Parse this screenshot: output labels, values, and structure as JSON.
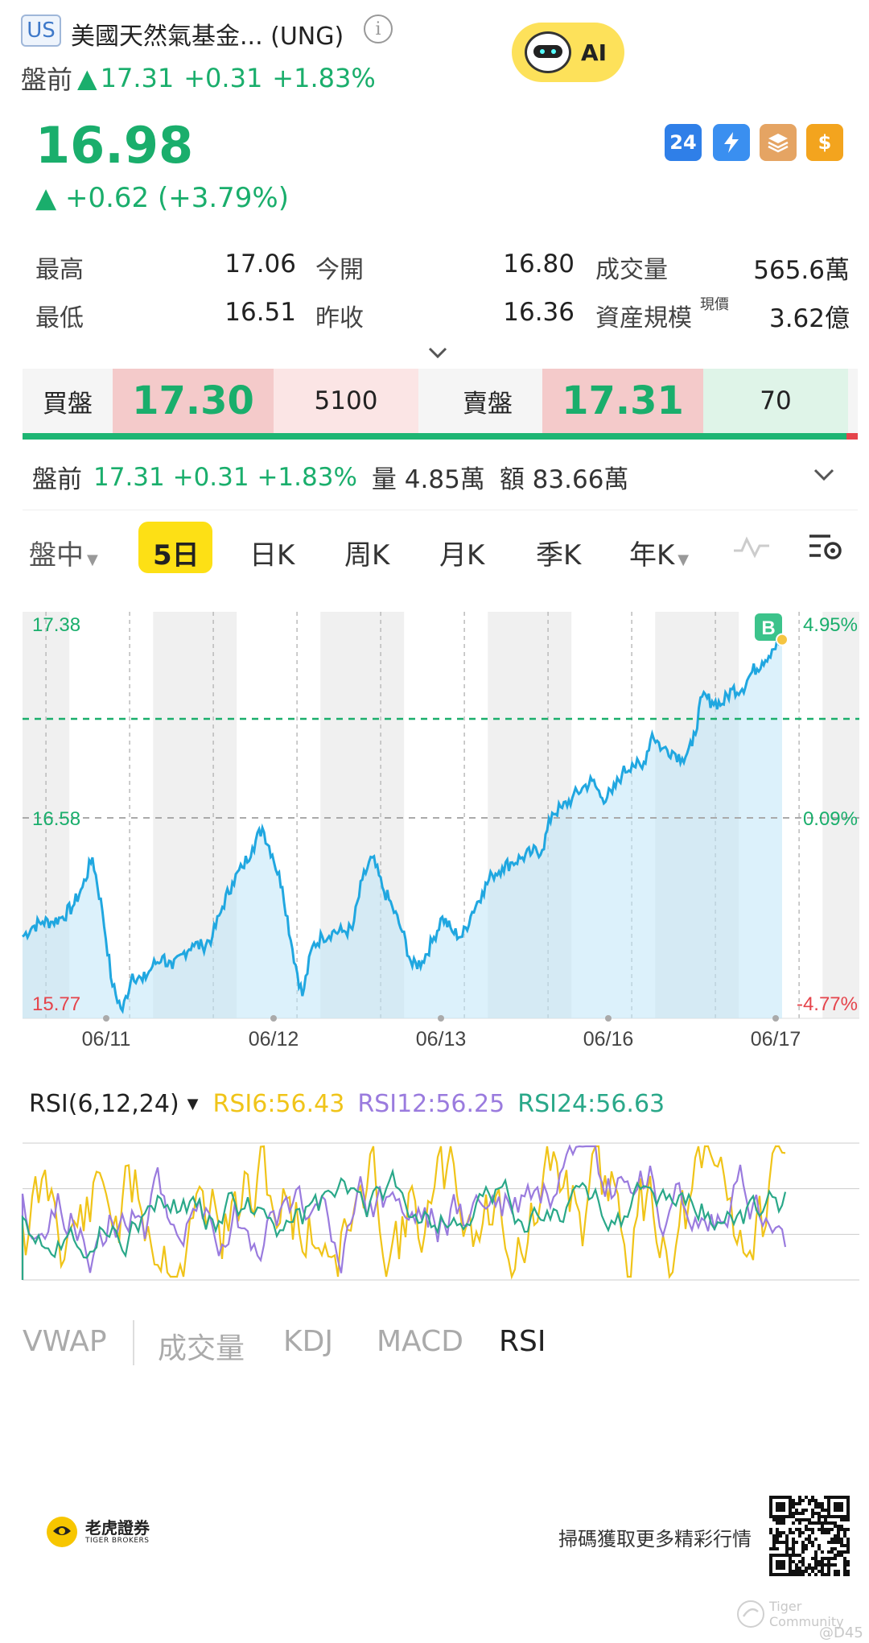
{
  "header": {
    "market_badge": "US",
    "stock_name": "美國天然氣基金... (UNG)",
    "ai_label": "AI",
    "premarket_label": "盤前",
    "premarket_arrow": "▲",
    "premarket_price": "17.31",
    "premarket_change": "+0.31",
    "premarket_pct": "+1.83%"
  },
  "quote": {
    "price": "16.98",
    "change_line": "▲ +0.62 (+3.79%)",
    "icons": [
      "24-hour-icon",
      "flash-trade-icon",
      "layers-icon",
      "dollar-icon"
    ],
    "icon_24_text": "24",
    "icon_dollar_text": "$"
  },
  "stats": {
    "high_label": "最高",
    "high_value": "17.06",
    "open_label": "今開",
    "open_value": "16.80",
    "volume_label": "成交量",
    "volume_value": "565.6萬",
    "low_label": "最低",
    "low_value": "16.51",
    "prev_close_label": "昨收",
    "prev_close_value": "16.36",
    "aum_label": "資産規模",
    "aum_suffix": "現價",
    "aum_value": "3.62億"
  },
  "orderbook": {
    "bid_label": "買盤",
    "bid_price": "17.30",
    "bid_size": "5100",
    "ask_label": "賣盤",
    "ask_price": "17.31",
    "ask_size": "70"
  },
  "premarket_row": {
    "label": "盤前",
    "price_change": "17.31 +0.31 +1.83%",
    "volume": "量 4.85萬",
    "amount": "額 83.66萬"
  },
  "period_tabs": {
    "intraday": "盤中",
    "five_day": "5日",
    "daily": "日K",
    "weekly": "周K",
    "monthly": "月K",
    "quarterly": "季K",
    "yearly": "年K",
    "active": "5日"
  },
  "chart_data": {
    "type": "line",
    "x_labels": [
      "06/11",
      "06/12",
      "06/13",
      "06/16",
      "06/17"
    ],
    "y_left_labels": {
      "top": "17.38",
      "mid": "16.58",
      "bottom": "15.77"
    },
    "y_right_labels": {
      "top": "4.95%",
      "mid": "0.09%",
      "bottom": "-4.77%"
    },
    "ylim": [
      15.77,
      17.38
    ],
    "prev_close_ref": 16.58,
    "current_price_ref": 16.98,
    "marker_label": "B",
    "series": [
      {
        "values": [
          16.1,
          16.14,
          16.16,
          16.16,
          16.18,
          16.22,
          16.3,
          16.42,
          16.2,
          15.9,
          15.8,
          15.95,
          15.92,
          15.98,
          16.02,
          15.97,
          16.03,
          16.07,
          16.06,
          16.1,
          16.22,
          16.32,
          16.38,
          16.46,
          16.54,
          16.43,
          16.3,
          16.05,
          15.86,
          16.06,
          16.1,
          16.12,
          16.12,
          16.13,
          16.33,
          16.42,
          16.3,
          16.22,
          16.12,
          15.98,
          16.0,
          16.08,
          16.18,
          16.12,
          16.1,
          16.2,
          16.28,
          16.35,
          16.38,
          16.4,
          16.42,
          16.44,
          16.45,
          16.6,
          16.62,
          16.66,
          16.7,
          16.73,
          16.66,
          16.68,
          16.76,
          16.8,
          16.78,
          16.92,
          16.86,
          16.85,
          16.82,
          16.87,
          17.07,
          17.05,
          17.04,
          17.1,
          17.1,
          17.17,
          17.21,
          17.26,
          17.3
        ]
      }
    ],
    "rsi": {
      "selector": "RSI(6,12,24)",
      "rsi6": "RSI6:56.43",
      "rsi12": "RSI12:56.25",
      "rsi24": "RSI24:56.63",
      "colors": {
        "rsi6": "#f0c419",
        "rsi12": "#9a7bde",
        "rsi24": "#2aa889"
      }
    },
    "colors": {
      "line": "#20a7e0",
      "fill": "#bfe6f8",
      "up": "#1aae6c",
      "down": "#e5444b"
    }
  },
  "indicator_tabs": {
    "vwap": "VWAP",
    "volume": "成交量",
    "kdj": "KDJ",
    "macd": "MACD",
    "rsi": "RSI",
    "active": "RSI"
  },
  "footer": {
    "logo_cn": "老虎證券",
    "logo_en": "TIGER BROKERS",
    "cta": "掃碼獲取更多精彩行情",
    "watermark": "Tiger Community",
    "user": "@D45"
  }
}
